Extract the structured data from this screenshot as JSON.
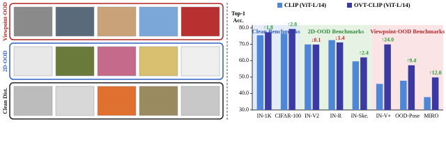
{
  "image_rows": [
    {
      "label": "Viewpoint-OOD",
      "color": "#b22222"
    },
    {
      "label": "2D-OOD",
      "color": "#2f5fbf"
    },
    {
      "label": "Clean Dist.",
      "color": "#222222"
    }
  ],
  "chart_data": {
    "type": "bar",
    "ylabel": [
      "Top-1",
      "Acc."
    ],
    "categories": [
      "IN-1K",
      "CIFAR-100",
      "IN-V2",
      "IN-R",
      "IN-Ske.",
      "IN-V+",
      "OOD-Pose",
      "MIRO"
    ],
    "series": [
      {
        "name": "CLIP (ViT-L/14)",
        "color": "#4f86d6",
        "values": [
          75.5,
          76.5,
          69.9,
          72.5,
          59.6,
          45.9,
          47.8,
          37.8
        ]
      },
      {
        "name": "OVT-CLIP (ViT-L/14)",
        "color": "#3b3aa3",
        "values": [
          77.3,
          79.3,
          69.8,
          71.1,
          62.0,
          69.9,
          57.2,
          49.8
        ],
        "value_labels": [
          "↑1.8",
          "↑2.8",
          "↓0.1",
          "↓1.4",
          "↑2.4",
          "↑24.0",
          "↑9.4",
          "↑12.0"
        ],
        "label_colors": [
          "#2e9e3a",
          "#2e9e3a",
          "#d42020",
          "#d42020",
          "#2e9e3a",
          "#2e9e3a",
          "#2e9e3a",
          "#2e9e3a"
        ]
      }
    ],
    "groups": [
      {
        "label": "Clean Benchmarks",
        "categories": [
          "IN-1K",
          "CIFAR-100"
        ],
        "background": "#e3ecf8",
        "color": "#2f5fbf"
      },
      {
        "label": "2D-OOD Benchmarks",
        "categories": [
          "IN-V2",
          "IN-R",
          "IN-Ske."
        ],
        "background": "#e6f3e4",
        "color": "#2e8b3a"
      },
      {
        "label": "Viewpoint-OOD Benchmarks",
        "categories": [
          "IN-V+",
          "OOD-Pose",
          "MIRO"
        ],
        "background": "#fbe4e6",
        "color": "#c0282c"
      }
    ],
    "ylim": [
      30,
      80
    ],
    "yticks": [
      {
        "value": 30,
        "label": "30.0"
      },
      {
        "value": 40,
        "label": "40.0"
      },
      {
        "value": 50,
        "label": "50.0"
      },
      {
        "value": 60,
        "label": "60.0"
      },
      {
        "value": 70,
        "label": "70.0"
      },
      {
        "value": 80,
        "label": "80.0"
      }
    ],
    "grid": false
  }
}
